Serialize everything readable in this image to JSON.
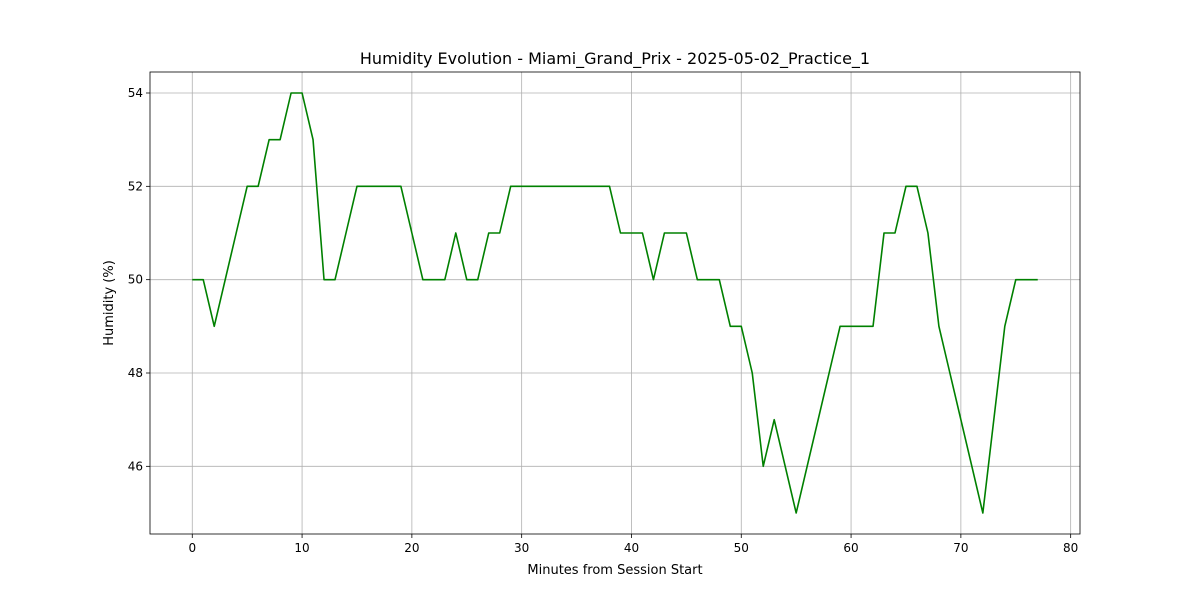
{
  "chart_data": {
    "type": "line",
    "title": "Humidity Evolution - Miami_Grand_Prix - 2025-05-02_Practice_1",
    "xlabel": "Minutes from Session Start",
    "ylabel": "Humidity (%)",
    "xlim": [
      -3.85,
      80.85
    ],
    "ylim": [
      44.55,
      54.45
    ],
    "xticks": [
      0,
      10,
      20,
      30,
      40,
      50,
      60,
      70,
      80
    ],
    "yticks": [
      46,
      48,
      50,
      52,
      54
    ],
    "grid": true,
    "legend": "none",
    "series": [
      {
        "color": "#008000",
        "x": [
          0,
          1,
          2,
          3,
          4,
          5,
          6,
          7,
          8,
          9,
          10,
          11,
          12,
          13,
          14,
          15,
          16,
          17,
          18,
          19,
          20,
          21,
          22,
          23,
          24,
          25,
          26,
          27,
          28,
          29,
          30,
          31,
          32,
          33,
          34,
          35,
          36,
          37,
          38,
          39,
          40,
          41,
          42,
          43,
          44,
          45,
          46,
          47,
          48,
          49,
          50,
          51,
          52,
          53,
          54,
          55,
          56,
          57,
          58,
          59,
          60,
          61,
          62,
          63,
          64,
          65,
          66,
          67,
          68,
          69,
          70,
          71,
          72,
          73,
          74,
          75,
          76,
          77
        ],
        "y": [
          50,
          50,
          49,
          50,
          51,
          52,
          52,
          53,
          53,
          54,
          54,
          53,
          50,
          50,
          51,
          52,
          52,
          52,
          52,
          52,
          51,
          50,
          50,
          50,
          51,
          50,
          50,
          51,
          51,
          52,
          52,
          52,
          52,
          52,
          52,
          52,
          52,
          52,
          52,
          51,
          51,
          51,
          50,
          51,
          51,
          51,
          50,
          50,
          50,
          49,
          49,
          48,
          46,
          47,
          46,
          45,
          46,
          47,
          48,
          49,
          49,
          49,
          49,
          51,
          51,
          52,
          52,
          51,
          49,
          48,
          47,
          46,
          45,
          47,
          49,
          50,
          50,
          50
        ]
      }
    ]
  }
}
